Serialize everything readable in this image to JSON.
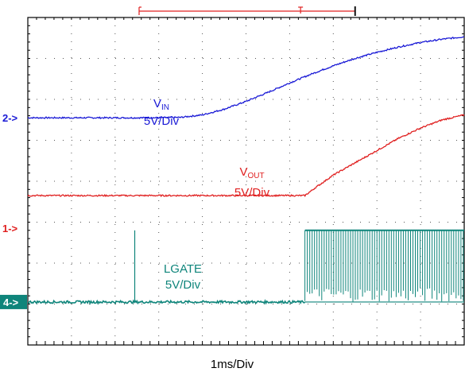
{
  "chart_data": {
    "type": "line",
    "title": "",
    "xlabel": "1ms/Div",
    "ylabel": "",
    "x_unit": "ms",
    "xlim": [
      0,
      10
    ],
    "ylim": [
      -4,
      4
    ],
    "grid": true,
    "grid_divisions": {
      "x": 10,
      "y": 8
    },
    "trigger_cursor": {
      "start_ms": 2.55,
      "trigger_ms": 6.25,
      "end_ms": 7.5
    },
    "channel_markers": [
      {
        "name": "2",
        "text": "2->",
        "level_div": 1.55,
        "color": "#1a1ad6"
      },
      {
        "name": "1",
        "text": "1->",
        "level_div": -1.15,
        "color": "#e02020"
      },
      {
        "name": "4",
        "text": "4->",
        "level_div": -2.95,
        "color": "#0f857b"
      }
    ],
    "series": [
      {
        "name": "V_IN",
        "label_main": "V",
        "label_sub": "IN",
        "scale": "5V/Div",
        "color": "#1a1ad6",
        "x": [
          0,
          1,
          2,
          3,
          3.5,
          4,
          4.5,
          5,
          5.5,
          6,
          6.5,
          7,
          7.5,
          8,
          8.5,
          9,
          9.5,
          10
        ],
        "y": [
          1.55,
          1.55,
          1.55,
          1.55,
          1.56,
          1.62,
          1.76,
          1.95,
          2.17,
          2.4,
          2.62,
          2.82,
          3.0,
          3.15,
          3.28,
          3.39,
          3.47,
          3.53
        ]
      },
      {
        "name": "V_OUT",
        "label_main": "V",
        "label_sub": "OUT",
        "scale": "5V/Div",
        "color": "#e02020",
        "x": [
          0,
          1,
          2,
          3,
          4,
          5,
          6,
          6.35,
          6.6,
          7,
          7.5,
          8,
          8.5,
          9,
          9.5,
          10
        ],
        "y": [
          -0.35,
          -0.35,
          -0.35,
          -0.35,
          -0.35,
          -0.35,
          -0.35,
          -0.35,
          -0.15,
          0.15,
          0.45,
          0.75,
          1.05,
          1.3,
          1.5,
          1.62
        ]
      },
      {
        "name": "LGATE",
        "scale": "5V/Div",
        "color": "#0f857b",
        "low_div": -2.95,
        "high_div": -1.2,
        "switching_start_ms": 6.35,
        "glitch_ms": 2.45,
        "glitch_peak_div": -1.2,
        "x": [
          0,
          2.44,
          2.45,
          2.46,
          6.33,
          6.36,
          10
        ],
        "y": [
          -2.95,
          -2.95,
          -1.2,
          -2.95,
          -2.95,
          -1.2,
          -1.2
        ]
      }
    ]
  }
}
